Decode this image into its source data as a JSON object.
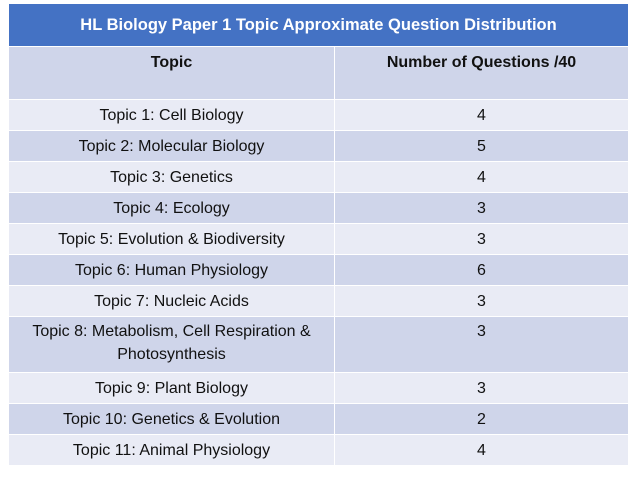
{
  "table": {
    "title": "HL Biology Paper 1 Topic Approximate Question Distribution",
    "headers": [
      "Topic",
      "Number of Questions /40"
    ],
    "rows": [
      {
        "topic": "Topic 1: Cell Biology",
        "count": "4"
      },
      {
        "topic": "Topic 2: Molecular Biology",
        "count": "5"
      },
      {
        "topic": "Topic 3: Genetics",
        "count": "4"
      },
      {
        "topic": "Topic 4: Ecology",
        "count": "3"
      },
      {
        "topic": "Topic 5: Evolution & Biodiversity",
        "count": "3"
      },
      {
        "topic": "Topic 6: Human Physiology",
        "count": "6"
      },
      {
        "topic": "Topic 7: Nucleic Acids",
        "count": "3"
      },
      {
        "topic": "Topic 8: Metabolism, Cell Respiration & Photosynthesis",
        "count": "3"
      },
      {
        "topic": "Topic 9: Plant Biology",
        "count": "3"
      },
      {
        "topic": "Topic 10: Genetics & Evolution",
        "count": "2"
      },
      {
        "topic": "Topic 11: Animal Physiology",
        "count": "4"
      }
    ]
  },
  "colors": {
    "title_bg": "#4472c4",
    "row_dark": "#cfd5ea",
    "row_light": "#e9ebf5"
  }
}
